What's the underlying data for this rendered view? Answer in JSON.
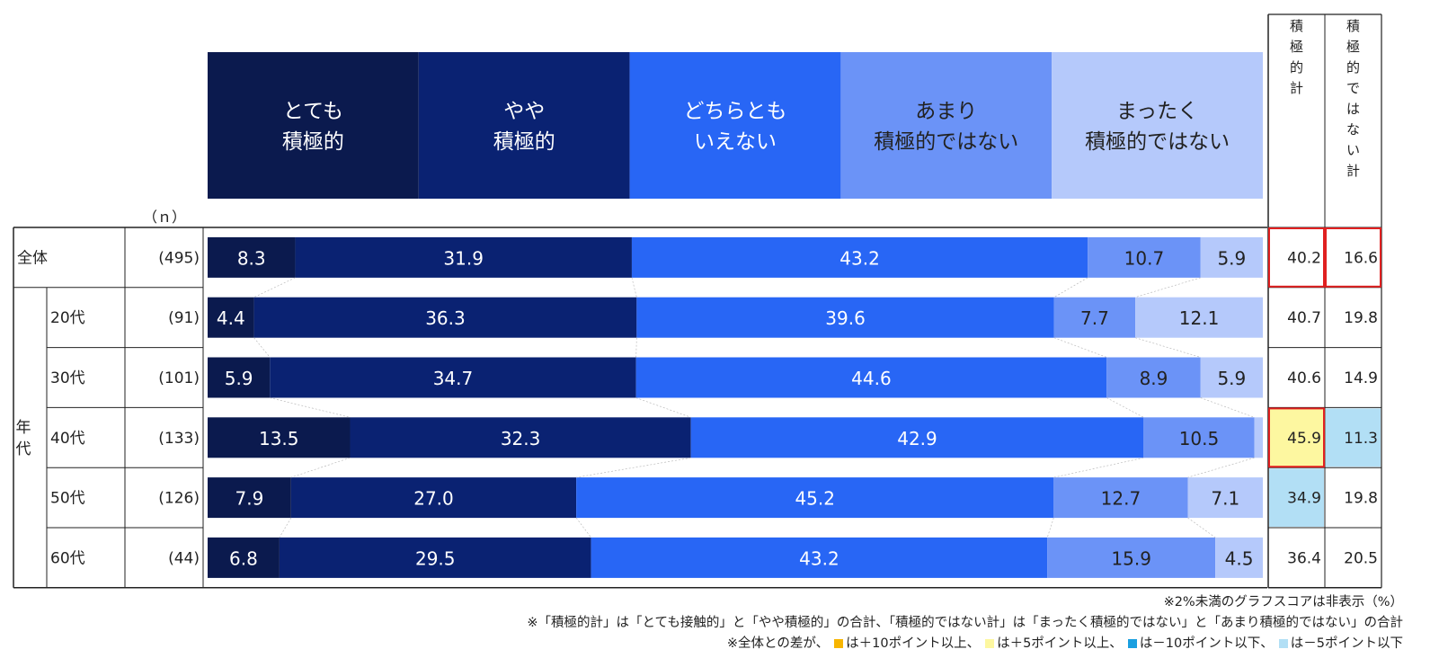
{
  "header": {
    "categories": [
      "とても\n積極的",
      "やや\n積極的",
      "どちらとも\nいえない",
      "あまり\n積極的ではない",
      "まったく\n積極的ではない"
    ],
    "colors": [
      "#0b1a4e",
      "#0a2272",
      "#2866f5",
      "#6b93f7",
      "#b5c9fb"
    ],
    "text_colors": [
      "#ffffff",
      "#ffffff",
      "#ffffff",
      "#222222",
      "#222222"
    ],
    "sum_columns": [
      "積極的計",
      "積極的ではない計"
    ],
    "n_label": "（ｎ）"
  },
  "group_label": "年代",
  "chart_data": {
    "type": "bar",
    "stacked": true,
    "orientation": "horizontal",
    "unit": "%",
    "categories": [
      "全体",
      "20代",
      "30代",
      "40代",
      "50代",
      "60代"
    ],
    "n": [
      "(495)",
      "(91)",
      "(101)",
      "(133)",
      "(126)",
      "(44)"
    ],
    "series": [
      {
        "name": "とても積極的",
        "values": [
          8.3,
          4.4,
          5.9,
          13.5,
          7.9,
          6.8
        ]
      },
      {
        "name": "やや積極的",
        "values": [
          31.9,
          36.3,
          34.7,
          32.3,
          27.0,
          29.5
        ]
      },
      {
        "name": "どちらともいえない",
        "values": [
          43.2,
          39.6,
          44.6,
          42.9,
          45.2,
          43.2
        ]
      },
      {
        "name": "あまり積極的ではない",
        "values": [
          10.7,
          7.7,
          8.9,
          10.5,
          12.7,
          15.9
        ]
      },
      {
        "name": "まったく積極的ではない",
        "values": [
          5.9,
          12.1,
          5.9,
          0.8,
          7.1,
          4.5
        ]
      }
    ],
    "totals": {
      "positive": [
        "40.2",
        "40.7",
        "40.6",
        "45.9",
        "34.9",
        "36.4"
      ],
      "negative": [
        "16.6",
        "19.8",
        "14.9",
        "11.3",
        "19.8",
        "20.5"
      ]
    },
    "highlights": {
      "positive": [
        "outline",
        "",
        "",
        "plus5",
        "minus5",
        ""
      ],
      "negative": [
        "outline",
        "",
        "",
        "minus5",
        "",
        ""
      ]
    },
    "highlight_colors": {
      "plus5": "#fdf7a0",
      "minus5": "#b2dff5",
      "outline": "#e02020"
    }
  },
  "notes": {
    "line1": "※2%未満のグラフスコアは非表示（%）",
    "line2": "※「積極的計」は「とても接触的」と「やや積極的」の合計、「積極的ではない計」は「まったく積極的ではない」と「あまり積極的ではない」の合計",
    "line3_prefix": "※全体との差が、",
    "legend": [
      {
        "color": "#f7b500",
        "text": "は＋10ポイント以上、"
      },
      {
        "color": "#fdf7a0",
        "text": "は＋5ポイント以上、"
      },
      {
        "color": "#1a9fe0",
        "text": "は－10ポイント以下、"
      },
      {
        "color": "#b2dff5",
        "text": "は－5ポイント以下"
      }
    ]
  }
}
